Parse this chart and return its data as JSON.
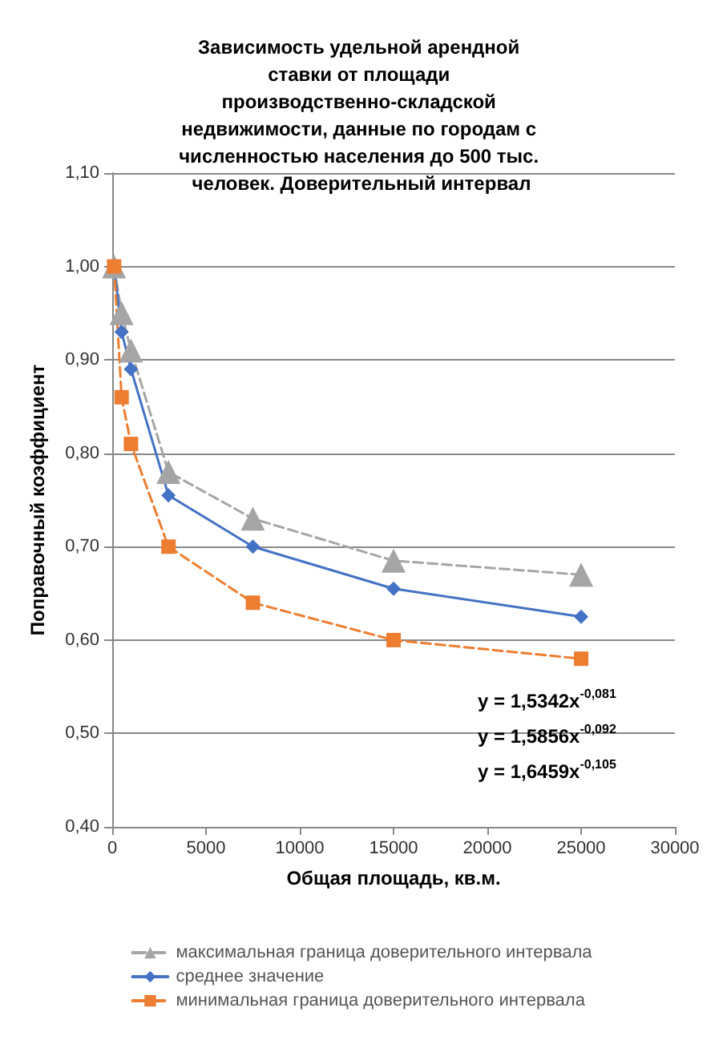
{
  "chart_data": {
    "type": "line",
    "title": "Зависимость удельной арендной ставки от площади производственно-складской недвижимости, данные по городам с численностью населения до 500 тыс. человек. Доверительный интервал",
    "xlabel": "Общая площадь, кв.м.",
    "ylabel": "Поправочный коэффициент",
    "x": [
      100,
      500,
      1000,
      3000,
      7500,
      15000,
      25000
    ],
    "series": [
      {
        "name": "максимальная граница доверительного интервала",
        "color": "#a5a5a5",
        "marker": "triangle",
        "line_style": "dashed",
        "values": [
          1.0,
          0.95,
          0.91,
          0.78,
          0.73,
          0.685,
          0.67
        ]
      },
      {
        "name": "среднее значение",
        "color": "#4472c4",
        "marker": "diamond",
        "line_style": "solid",
        "values": [
          1.0,
          0.93,
          0.89,
          0.755,
          0.7,
          0.655,
          0.625
        ]
      },
      {
        "name": "минимальная граница доверительного интервала",
        "color": "#ed7d31",
        "marker": "square",
        "line_style": "dashed",
        "values": [
          1.0,
          0.86,
          0.81,
          0.7,
          0.64,
          0.6,
          0.58
        ]
      }
    ],
    "xlim": [
      0,
      30000
    ],
    "xticks": [
      0,
      5000,
      10000,
      15000,
      20000,
      25000,
      30000
    ],
    "ylim": [
      0.4,
      1.1
    ],
    "yticks": [
      {
        "value": 0.4,
        "label": "0,40"
      },
      {
        "value": 0.5,
        "label": "0,50"
      },
      {
        "value": 0.6,
        "label": "0,60"
      },
      {
        "value": 0.7,
        "label": "0,70"
      },
      {
        "value": 0.8,
        "label": "0,80"
      },
      {
        "value": 0.9,
        "label": "0,90"
      },
      {
        "value": 1.0,
        "label": "1,00"
      },
      {
        "value": 1.1,
        "label": "1,10"
      }
    ],
    "annotations": [
      "y = 1,5342x$^{-0,081}$",
      "y = 1,5856x$^{-0,092}$",
      "y = 1,6459x$^{-0,105}$"
    ],
    "grid": "y",
    "legend": "bottom"
  }
}
